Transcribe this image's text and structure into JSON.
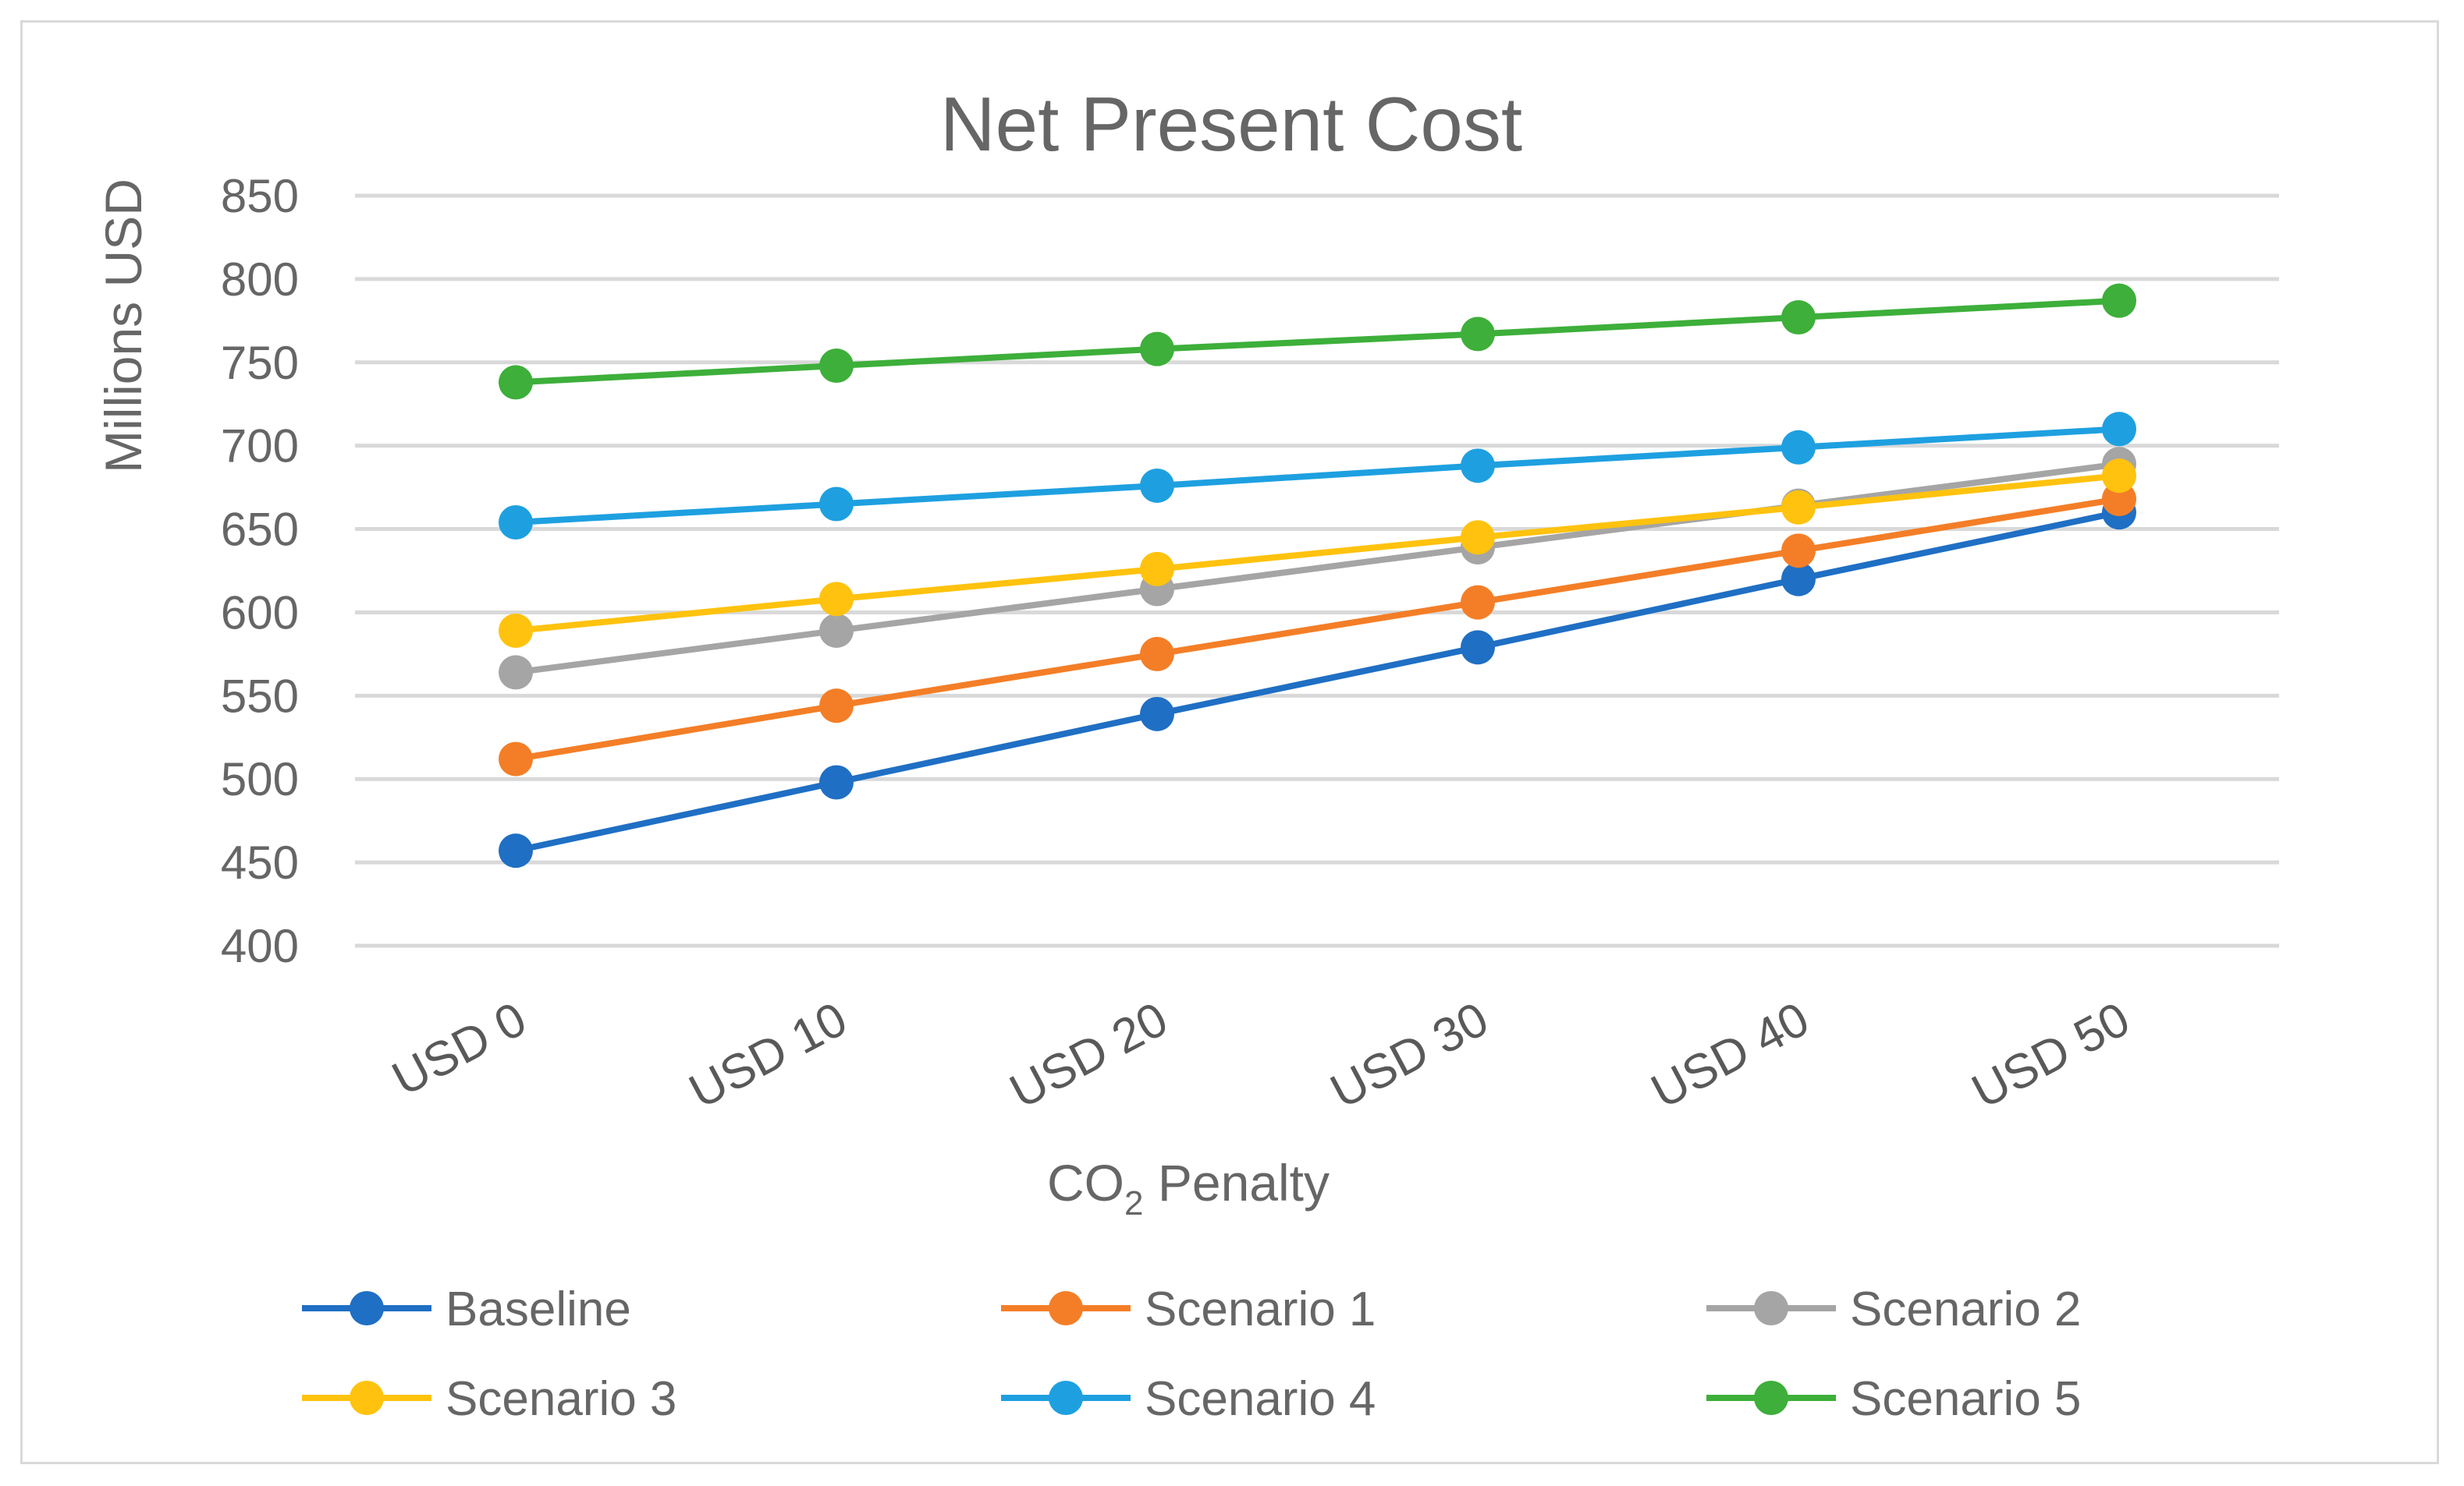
{
  "chart_data": {
    "type": "line",
    "title": "Net Present Cost",
    "xlabel_main": "CO",
    "xlabel_sub": "2",
    "xlabel_rest": " Penalty",
    "ylabel": "Millions USD",
    "ylim": [
      400,
      850
    ],
    "ytick_step": 50,
    "yticks": [
      "850",
      "800",
      "750",
      "700",
      "650",
      "600",
      "550",
      "500",
      "450",
      "400"
    ],
    "grid": true,
    "legend_position": "bottom",
    "categories": [
      "USD 0",
      "USD 10",
      "USD 20",
      "USD 30",
      "USD 40",
      "USD 50"
    ],
    "series": [
      {
        "name": "Baseline",
        "color": "#1f6fc4",
        "values": [
          457,
          498,
          539,
          579,
          620,
          660
        ]
      },
      {
        "name": "Scenario 1",
        "color": "#f47e27",
        "values": [
          512,
          544,
          575,
          606,
          637,
          668
        ]
      },
      {
        "name": "Scenario 2",
        "color": "#a5a5a5",
        "values": [
          564,
          589,
          614,
          639,
          664,
          689
        ]
      },
      {
        "name": "Scenario 3",
        "color": "#ffc20e",
        "values": [
          589,
          608,
          626,
          645,
          663,
          682
        ]
      },
      {
        "name": "Scenario 4",
        "color": "#1ea0e0",
        "values": [
          654,
          665,
          676,
          688,
          699,
          710
        ]
      },
      {
        "name": "Scenario 5",
        "color": "#3daf3a",
        "values": [
          738,
          748,
          758,
          767,
          777,
          787
        ]
      }
    ]
  }
}
